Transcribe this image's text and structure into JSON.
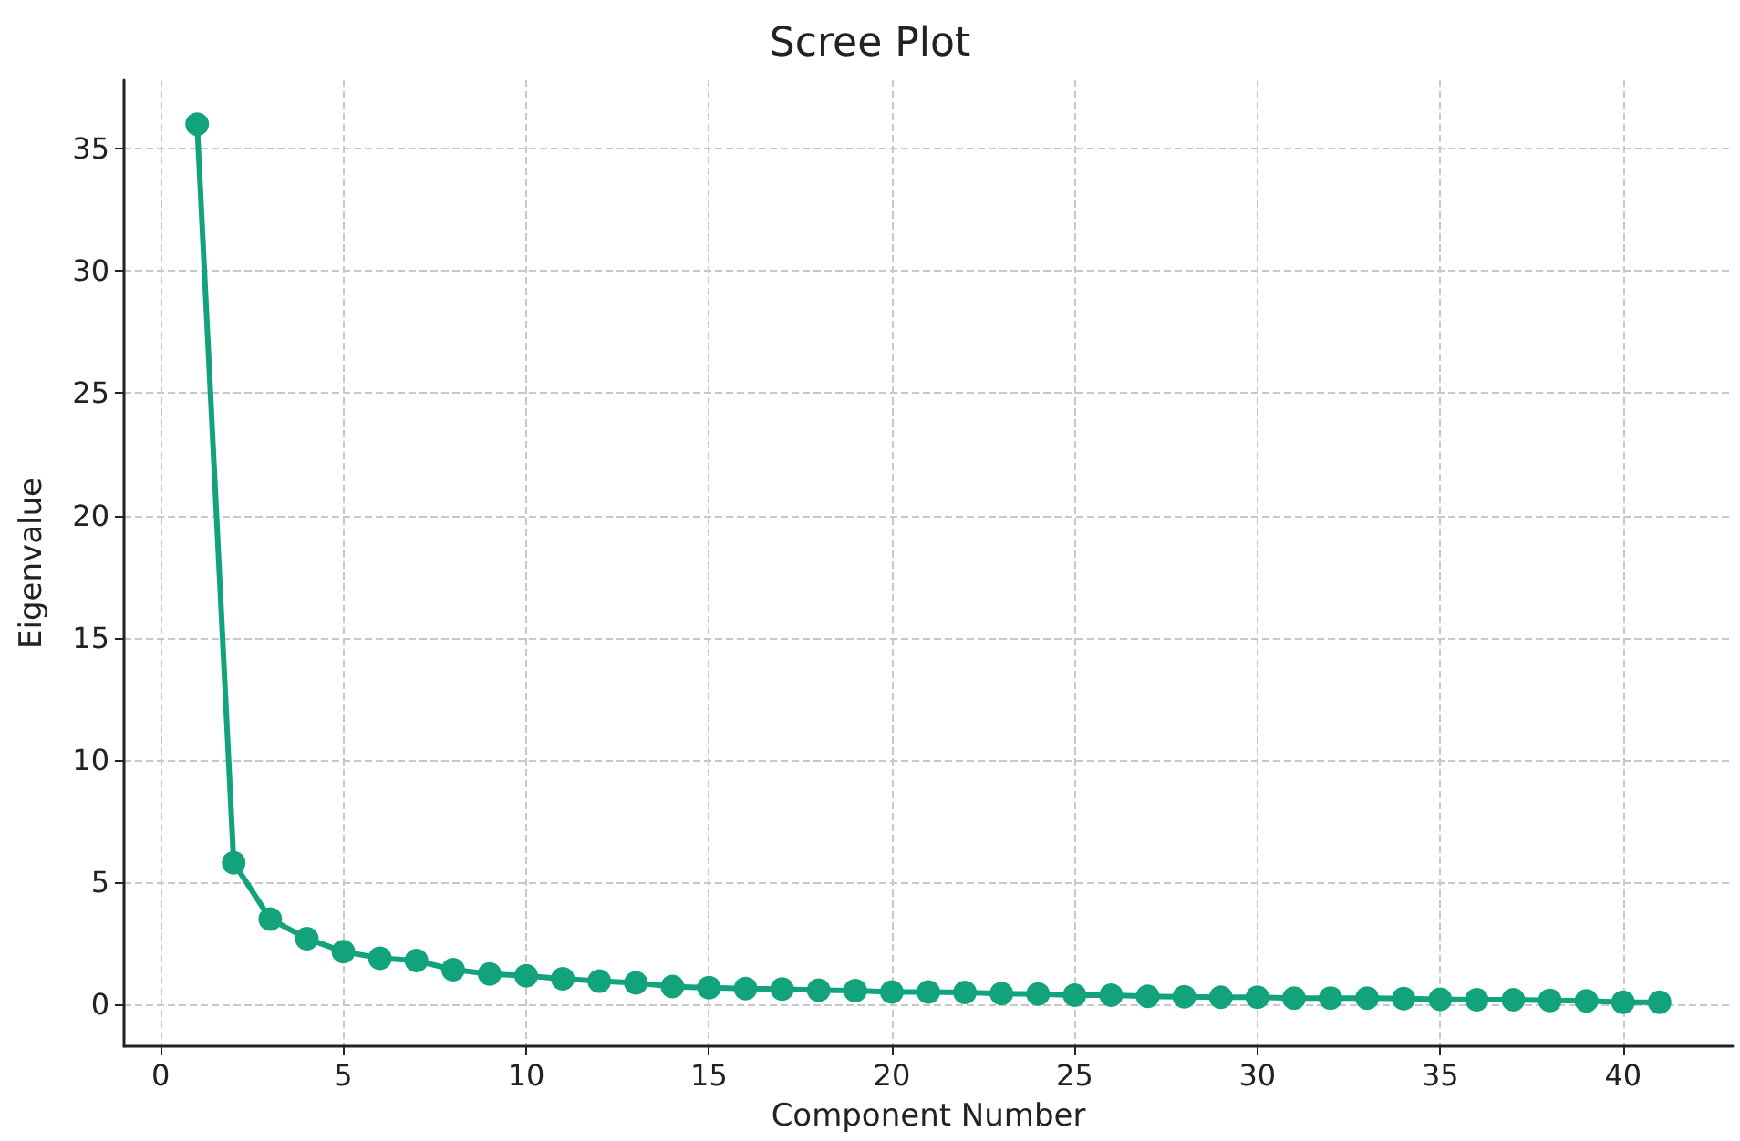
{
  "chart_data": {
    "type": "line",
    "title": "Scree Plot",
    "xlabel": "Component Number",
    "ylabel": "Eigenvalue",
    "x": [
      1,
      2,
      3,
      4,
      5,
      6,
      7,
      8,
      9,
      10,
      11,
      12,
      13,
      14,
      15,
      16,
      17,
      18,
      19,
      20,
      21,
      22,
      23,
      24,
      25,
      26,
      27,
      28,
      29,
      30,
      31,
      32,
      33,
      34,
      35,
      36,
      37,
      38,
      39,
      40,
      41
    ],
    "series": [
      {
        "color": "#12a37c",
        "values": [
          36.0,
          5.8,
          3.5,
          2.7,
          2.17,
          1.9,
          1.8,
          1.43,
          1.25,
          1.18,
          1.06,
          0.96,
          0.89,
          0.74,
          0.69,
          0.66,
          0.64,
          0.59,
          0.57,
          0.52,
          0.52,
          0.5,
          0.45,
          0.43,
          0.39,
          0.39,
          0.34,
          0.32,
          0.3,
          0.3,
          0.27,
          0.27,
          0.27,
          0.25,
          0.22,
          0.2,
          0.2,
          0.17,
          0.15,
          0.1,
          0.1
        ]
      }
    ],
    "xlim": [
      -1,
      43
    ],
    "ylim": [
      -1.7,
      37.8
    ],
    "xticks": [
      0,
      5,
      10,
      15,
      20,
      25,
      30,
      35,
      40
    ],
    "yticks": [
      0,
      5,
      10,
      15,
      20,
      25,
      30,
      35
    ],
    "grid": true,
    "marker": "circle",
    "line_style": "solid"
  }
}
